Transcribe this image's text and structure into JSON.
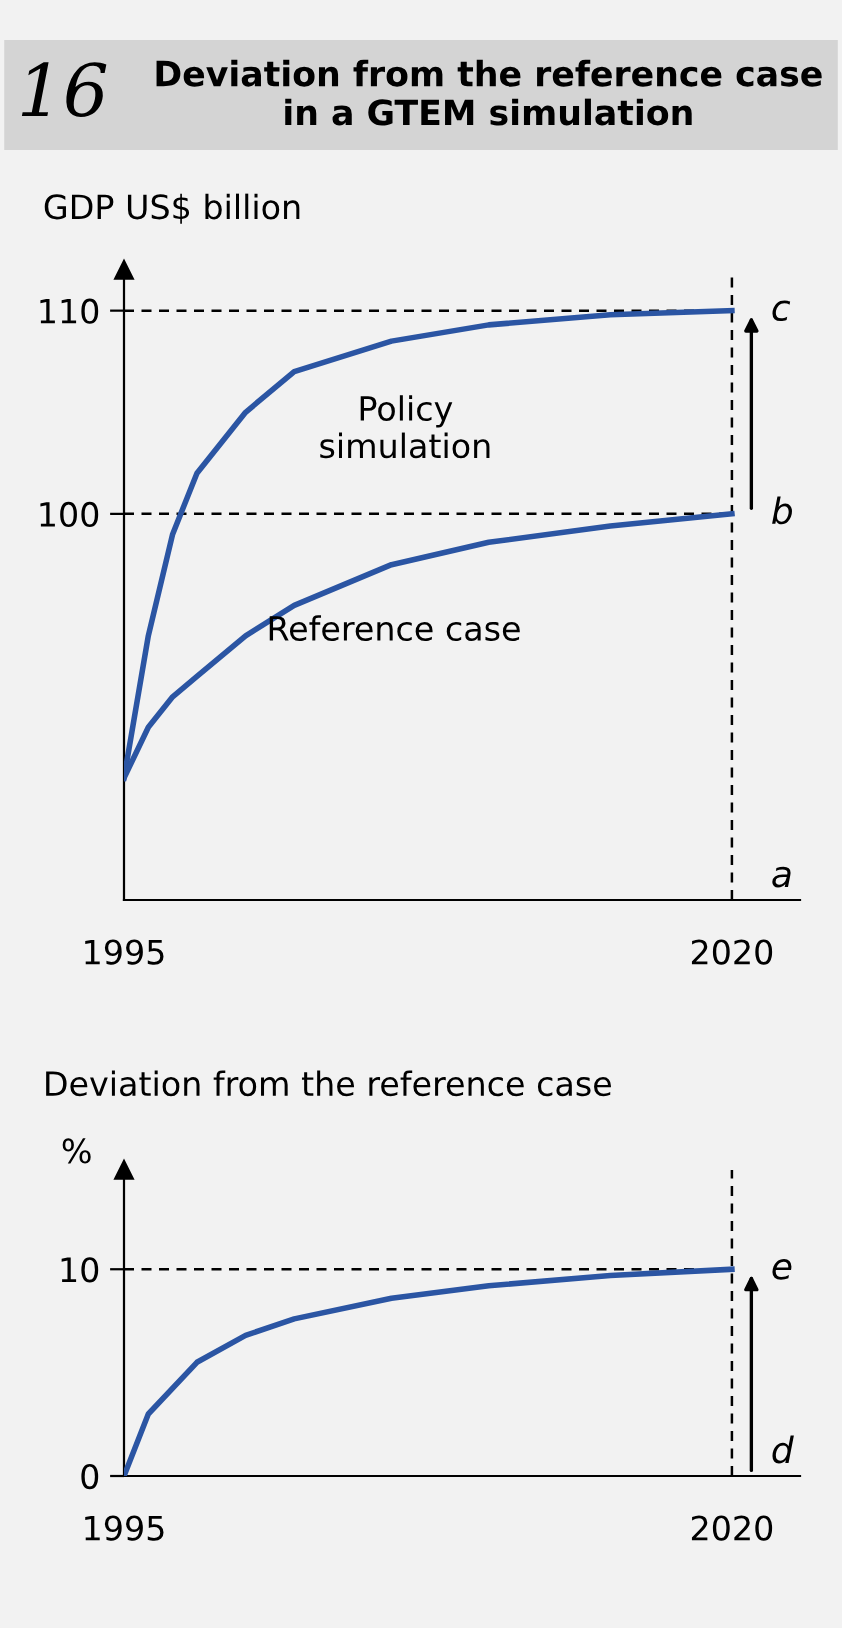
{
  "chart_data": [
    {
      "type": "line",
      "title": "Deviation from the reference case in a GTEM simulation",
      "ylabel": "GDP US$ billion",
      "x": [
        1995,
        1996,
        1997,
        1998,
        2000,
        2002,
        2006,
        2010,
        2015,
        2020
      ],
      "series": [
        {
          "name": "Policy simulation",
          "color": "#2b55a3",
          "values": [
            87,
            94,
            99,
            102,
            105,
            107,
            108.5,
            109.3,
            109.8,
            110
          ]
        },
        {
          "name": "Reference case",
          "color": "#2b55a3",
          "values": [
            87,
            89.5,
            91,
            92,
            94,
            95.5,
            97.5,
            98.6,
            99.4,
            100
          ]
        }
      ],
      "xlim": [
        1995,
        2022.8
      ],
      "ylim": [
        81,
        112
      ],
      "xticks": [
        1995,
        2020
      ],
      "yticks": [
        100,
        110
      ],
      "ref_lines": [
        {
          "axis": "y",
          "value": 100,
          "label": null
        },
        {
          "axis": "y",
          "value": 110,
          "label": null
        },
        {
          "axis": "x",
          "value": 2020,
          "label": null
        }
      ],
      "annotations": [
        "16",
        "c",
        "b",
        "a"
      ],
      "grid": false,
      "legend": false,
      "marker": "none",
      "line_style": "solid"
    },
    {
      "type": "line",
      "title": "Deviation from the reference case",
      "ylabel": "%",
      "x": [
        1995,
        1996,
        1998,
        2000,
        2002,
        2006,
        2010,
        2015,
        2020
      ],
      "series": [
        {
          "color": "#2b55a3",
          "values": [
            0,
            3,
            5.5,
            6.8,
            7.6,
            8.6,
            9.2,
            9.7,
            10
          ]
        }
      ],
      "xlim": [
        1995,
        2022.8
      ],
      "ylim": [
        0,
        14.8
      ],
      "xticks": [
        1995,
        2020
      ],
      "yticks": [
        0,
        10
      ],
      "ref_lines": [
        {
          "axis": "y",
          "value": 10,
          "label": null
        },
        {
          "axis": "x",
          "value": 2020,
          "label": null
        }
      ],
      "annotations": [
        "e",
        "d"
      ],
      "grid": false,
      "legend": false,
      "marker": "none",
      "line_style": "solid"
    }
  ]
}
